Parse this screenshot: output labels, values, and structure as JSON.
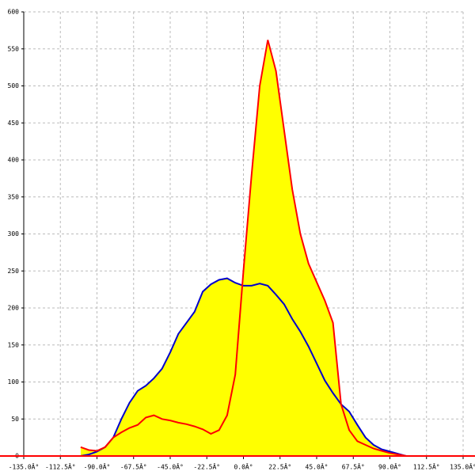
{
  "chart_data": {
    "type": "area-line",
    "x": [
      -100,
      -95,
      -90,
      -85,
      -80,
      -75,
      -70,
      -65,
      -60,
      -55,
      -50,
      -45,
      -40,
      -35,
      -30,
      -25,
      -20,
      -15,
      -10,
      -5,
      0,
      5,
      10,
      15,
      20,
      25,
      30,
      35,
      40,
      45,
      50,
      55,
      60,
      65,
      70,
      75,
      80,
      85,
      90,
      95,
      100
    ],
    "series": [
      {
        "color": "#0000cc",
        "values": [
          0,
          2,
          6,
          12,
          25,
          50,
          72,
          88,
          95,
          105,
          118,
          140,
          165,
          180,
          195,
          222,
          232,
          238,
          240,
          234,
          230,
          230,
          233,
          230,
          218,
          205,
          185,
          168,
          148,
          125,
          102,
          85,
          70,
          60,
          42,
          25,
          15,
          9,
          6,
          3,
          0
        ]
      },
      {
        "color": "#ff0000",
        "values": [
          12,
          8,
          7,
          12,
          25,
          32,
          38,
          42,
          52,
          55,
          50,
          48,
          45,
          43,
          40,
          36,
          30,
          35,
          55,
          110,
          250,
          380,
          500,
          562,
          520,
          440,
          360,
          300,
          260,
          235,
          210,
          180,
          70,
          35,
          20,
          15,
          10,
          7,
          4,
          2,
          0
        ]
      }
    ],
    "fill_color": "#ffff00",
    "xlim": [
      -135,
      135
    ],
    "xticks": [
      {
        "value": -135,
        "label": "-135.0Â°"
      },
      {
        "value": -112.5,
        "label": "-112.5Â°"
      },
      {
        "value": -90,
        "label": "-90.0Â°"
      },
      {
        "value": -67.5,
        "label": "-67.5Â°"
      },
      {
        "value": -45,
        "label": "-45.0Â°"
      },
      {
        "value": -22.5,
        "label": "-22.5Â°"
      },
      {
        "value": 0,
        "label": "0.0Â°"
      },
      {
        "value": 22.5,
        "label": "22.5Â°"
      },
      {
        "value": 45,
        "label": "45.0Â°"
      },
      {
        "value": 67.5,
        "label": "67.5Â°"
      },
      {
        "value": 90,
        "label": "90.0Â°"
      },
      {
        "value": 112.5,
        "label": "112.5Â°"
      },
      {
        "value": 135,
        "label": "135.0Â°"
      }
    ],
    "ylim": [
      0,
      600
    ],
    "yticks": [
      0,
      50,
      100,
      150,
      200,
      250,
      300,
      350,
      400,
      450,
      500,
      550,
      600
    ],
    "grid": true
  }
}
